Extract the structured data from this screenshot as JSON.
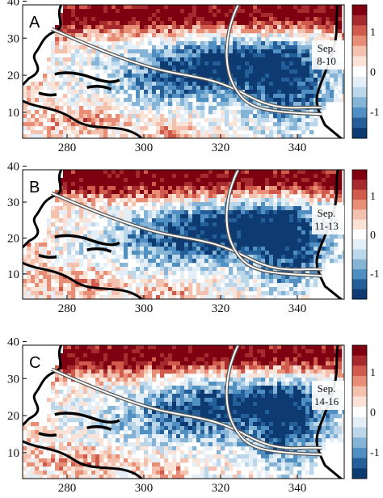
{
  "figure": {
    "x_ticks": [
      "280",
      "300",
      "320",
      "340"
    ],
    "y_ticks": [
      "10",
      "20",
      "30",
      "40"
    ],
    "colorbar_ticks": [
      "1",
      "0",
      "-1"
    ],
    "colors": {
      "strong_pos": "#7f0011",
      "pos": "#d05a4c",
      "weak_pos": "#f4c1ae",
      "neutral": "#ffffff",
      "weak_neg": "#bcd7ea",
      "neg": "#4f8fc1",
      "strong_neg": "#0d3a71",
      "coast": "#000000",
      "track": "#555555"
    }
  },
  "panels": [
    {
      "label": "A",
      "date_line1": "Sep.",
      "date_line2": "8-10"
    },
    {
      "label": "B",
      "date_line1": "Sep.",
      "date_line2": "11-13"
    },
    {
      "label": "C",
      "date_line1": "Sep.",
      "date_line2": "14-16"
    }
  ]
}
